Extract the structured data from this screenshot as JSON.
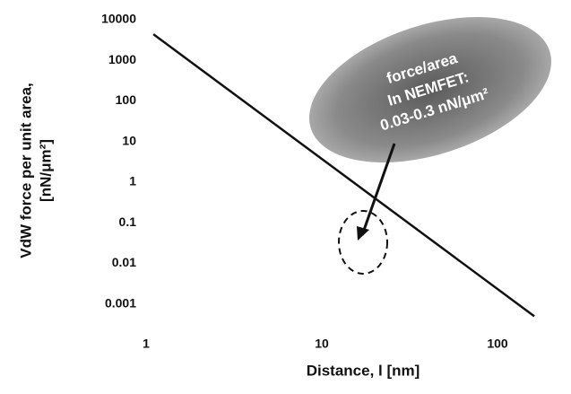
{
  "chart_data": {
    "type": "line",
    "x_label": "Distance, l [nm]",
    "y_label": [
      "VdW force per unit  area,",
      "[nN/μm²]"
    ],
    "annotation": [
      "force/area",
      "In NEMFET:",
      "0.03-0.3 nN/μm²"
    ],
    "x": [
      1.1,
      162
    ],
    "series": [
      {
        "color": "#111111",
        "values": [
          4400,
          0.0005
        ]
      }
    ],
    "xscale": "log",
    "yscale": "log",
    "xlim": [
      1,
      200
    ],
    "ylim": [
      0.0001,
      10000
    ],
    "xticks": [
      1,
      10,
      100
    ],
    "yticks": [
      10000,
      1000,
      100,
      10,
      1,
      0.1,
      0.01,
      0.001
    ],
    "grid": false
  }
}
